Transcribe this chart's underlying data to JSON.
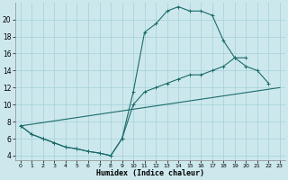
{
  "xlabel": "Humidex (Indice chaleur)",
  "bg_color": "#cce8ed",
  "grid_color": "#aad4db",
  "line_color": "#1c6b6b",
  "curve1_x": [
    0,
    1,
    2,
    3,
    4,
    5,
    6,
    7,
    8,
    9,
    10,
    11,
    12,
    13,
    14,
    15,
    16,
    17,
    18,
    19,
    20,
    21,
    22
  ],
  "curve1_y": [
    7.5,
    6.5,
    6.0,
    5.5,
    5.0,
    4.8,
    4.5,
    4.3,
    4.0,
    6.0,
    11.5,
    18.5,
    19.5,
    21.0,
    21.5,
    21.0,
    21.0,
    20.5,
    17.5,
    15.5,
    14.5,
    14.0,
    12.5
  ],
  "curve2_x": [
    0,
    1,
    2,
    3,
    4,
    5,
    6,
    7,
    8,
    9,
    10,
    11,
    12,
    13,
    14,
    15,
    16,
    17,
    18,
    19,
    20
  ],
  "curve2_y": [
    7.5,
    6.5,
    6.0,
    5.5,
    5.0,
    4.8,
    4.5,
    4.3,
    4.0,
    6.0,
    10.0,
    11.5,
    12.0,
    12.5,
    13.0,
    13.5,
    13.5,
    14.0,
    14.5,
    15.5,
    15.5
  ],
  "curve3_x": [
    0,
    23
  ],
  "curve3_y": [
    7.5,
    12.0
  ],
  "xlim": [
    -0.5,
    23.5
  ],
  "ylim": [
    3.5,
    22.0
  ],
  "yticks": [
    4,
    6,
    8,
    10,
    12,
    14,
    16,
    18,
    20
  ],
  "xticks": [
    0,
    1,
    2,
    3,
    4,
    5,
    6,
    7,
    8,
    9,
    10,
    11,
    12,
    13,
    14,
    15,
    16,
    17,
    18,
    19,
    20,
    21,
    22,
    23
  ],
  "xtick_labels": [
    "0",
    "1",
    "2",
    "3",
    "4",
    "5",
    "6",
    "7",
    "8",
    "9",
    "10",
    "11",
    "12",
    "13",
    "14",
    "15",
    "16",
    "17",
    "18",
    "19",
    "20",
    "21",
    "22",
    "23"
  ]
}
